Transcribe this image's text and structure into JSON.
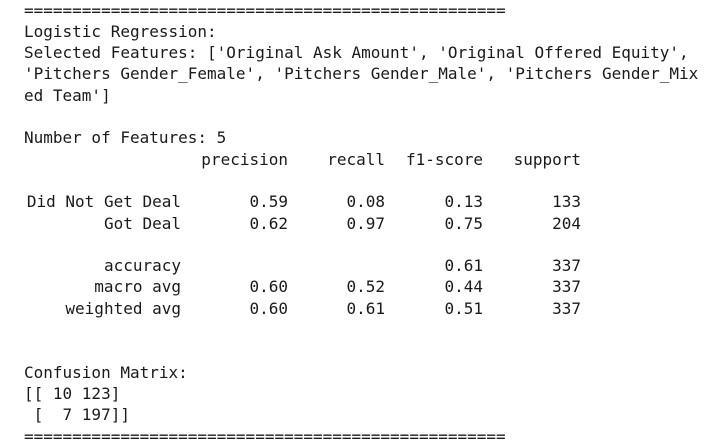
{
  "separator_top": "==================================================",
  "model": "Logistic Regression:",
  "selected_features": [
    "Selected Features: ['Original Ask Amount', 'Original Offered Equity',",
    "'Pitchers Gender_Female', 'Pitchers Gender_Male', 'Pitchers Gender_Mix",
    "ed Team']"
  ],
  "number_of_features": "Number of Features: 5",
  "report": {
    "header": [
      "precision",
      "recall",
      "f1-score",
      "support"
    ],
    "rows": [
      [
        "Did Not Get Deal",
        "0.59",
        "0.08",
        "0.13",
        "133"
      ],
      [
        "Got Deal",
        "0.62",
        "0.97",
        "0.75",
        "204"
      ],
      [
        "accuracy",
        null,
        null,
        "0.61",
        "337"
      ],
      [
        "macro avg",
        "0.60",
        "0.52",
        "0.44",
        "337"
      ],
      [
        "weighted avg",
        "0.60",
        "0.61",
        "0.51",
        "337"
      ]
    ]
  },
  "confusion_matrix": {
    "title": "Confusion Matrix:",
    "lines": [
      "[[ 10 123]",
      " [  7 197]]"
    ]
  },
  "separator_bottom": "=================================================="
}
